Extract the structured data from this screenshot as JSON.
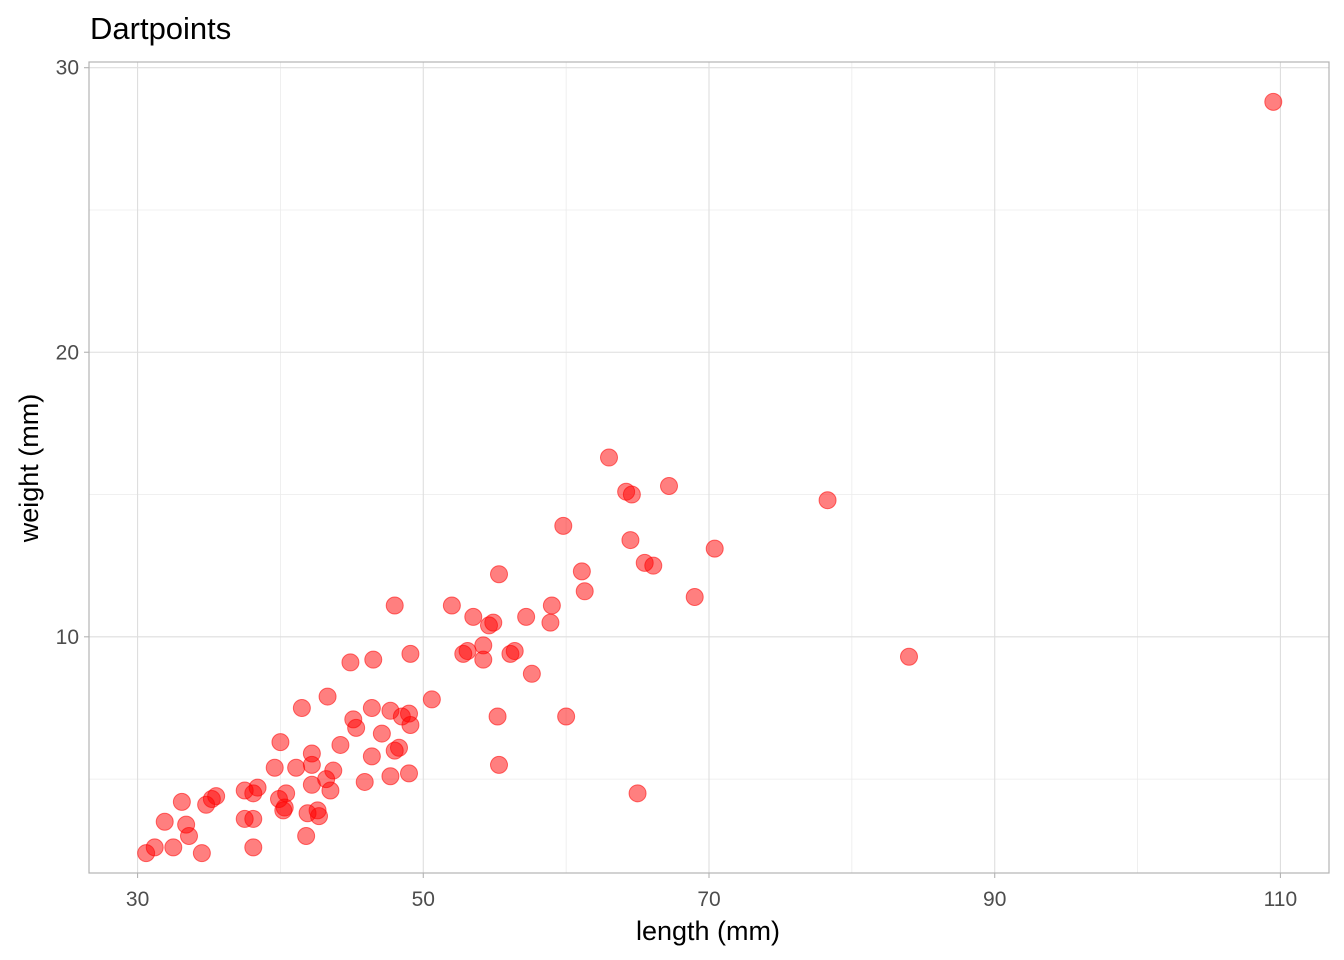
{
  "chart_data": {
    "type": "scatter",
    "title": "Dartpoints",
    "xlabel": "length (mm)",
    "ylabel": "weight (mm)",
    "xlim": [
      26.6,
      113.4
    ],
    "ylim": [
      1.7,
      30.2
    ],
    "xticks": [
      30,
      50,
      70,
      90,
      110
    ],
    "xticks_minor": [
      40,
      60,
      80,
      100
    ],
    "yticks": [
      10,
      20,
      30
    ],
    "yticks_minor": [
      5,
      15,
      25
    ],
    "grid": true,
    "legend": "none",
    "point_color": "#ff0000",
    "point_alpha": 0.5,
    "points": [
      [
        109.5,
        28.8
      ],
      [
        78.3,
        14.8
      ],
      [
        84.0,
        9.3
      ],
      [
        70.4,
        13.1
      ],
      [
        69.0,
        11.4
      ],
      [
        67.2,
        15.3
      ],
      [
        66.1,
        12.5
      ],
      [
        65.5,
        12.6
      ],
      [
        64.6,
        15.0
      ],
      [
        64.2,
        15.1
      ],
      [
        64.5,
        13.4
      ],
      [
        63.0,
        16.3
      ],
      [
        65.0,
        4.5
      ],
      [
        61.3,
        11.6
      ],
      [
        61.1,
        12.3
      ],
      [
        59.8,
        13.9
      ],
      [
        60.0,
        7.2
      ],
      [
        59.0,
        11.1
      ],
      [
        58.9,
        10.5
      ],
      [
        57.6,
        8.7
      ],
      [
        57.2,
        10.7
      ],
      [
        56.4,
        9.5
      ],
      [
        56.1,
        9.4
      ],
      [
        55.3,
        12.2
      ],
      [
        55.2,
        7.2
      ],
      [
        55.3,
        5.5
      ],
      [
        54.9,
        10.5
      ],
      [
        54.6,
        10.4
      ],
      [
        54.2,
        9.7
      ],
      [
        54.2,
        9.2
      ],
      [
        53.5,
        10.7
      ],
      [
        53.1,
        9.5
      ],
      [
        52.8,
        9.4
      ],
      [
        52.0,
        11.1
      ],
      [
        50.6,
        7.8
      ],
      [
        49.1,
        9.4
      ],
      [
        49.1,
        6.9
      ],
      [
        49.0,
        7.3
      ],
      [
        49.0,
        5.2
      ],
      [
        48.5,
        7.2
      ],
      [
        48.3,
        6.1
      ],
      [
        48.0,
        11.1
      ],
      [
        48.0,
        6.0
      ],
      [
        47.7,
        7.4
      ],
      [
        47.7,
        5.1
      ],
      [
        47.1,
        6.6
      ],
      [
        46.5,
        9.2
      ],
      [
        46.4,
        7.5
      ],
      [
        46.4,
        5.8
      ],
      [
        45.9,
        4.9
      ],
      [
        45.3,
        6.8
      ],
      [
        45.1,
        7.1
      ],
      [
        44.9,
        9.1
      ],
      [
        44.2,
        6.2
      ],
      [
        43.7,
        5.3
      ],
      [
        43.5,
        4.6
      ],
      [
        43.3,
        7.9
      ],
      [
        43.2,
        5.0
      ],
      [
        42.7,
        3.7
      ],
      [
        42.6,
        3.9
      ],
      [
        42.2,
        5.9
      ],
      [
        42.2,
        5.5
      ],
      [
        42.2,
        4.8
      ],
      [
        41.9,
        3.8
      ],
      [
        41.8,
        3.0
      ],
      [
        41.5,
        7.5
      ],
      [
        41.1,
        5.4
      ],
      [
        40.4,
        4.5
      ],
      [
        40.3,
        4.0
      ],
      [
        40.2,
        3.9
      ],
      [
        40.0,
        6.3
      ],
      [
        39.9,
        4.3
      ],
      [
        39.6,
        5.4
      ],
      [
        38.4,
        4.7
      ],
      [
        38.1,
        4.5
      ],
      [
        38.1,
        3.6
      ],
      [
        38.1,
        2.6
      ],
      [
        37.5,
        4.6
      ],
      [
        37.5,
        3.6
      ],
      [
        35.5,
        4.4
      ],
      [
        35.2,
        4.3
      ],
      [
        34.8,
        4.1
      ],
      [
        34.5,
        2.4
      ],
      [
        33.6,
        3.0
      ],
      [
        33.4,
        3.4
      ],
      [
        33.1,
        4.2
      ],
      [
        32.5,
        2.6
      ],
      [
        31.9,
        3.5
      ],
      [
        31.2,
        2.6
      ],
      [
        30.6,
        2.4
      ]
    ]
  }
}
